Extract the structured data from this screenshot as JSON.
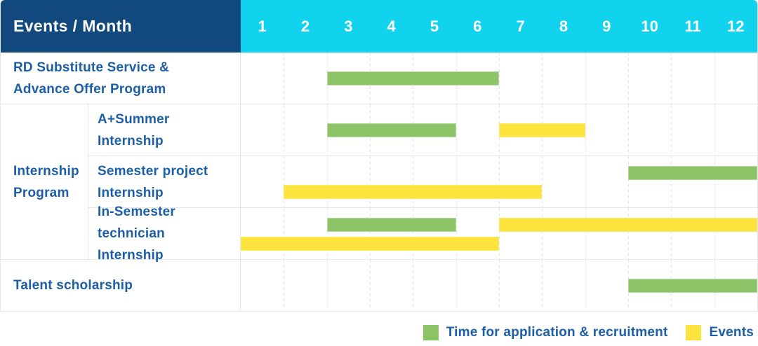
{
  "chart_data": {
    "type": "gantt",
    "corner_label": "Events / Month",
    "x_categories": [
      "1",
      "2",
      "3",
      "4",
      "5",
      "6",
      "7",
      "8",
      "9",
      "10",
      "11",
      "12"
    ],
    "x_range": [
      1,
      12
    ],
    "grid": true,
    "rows": [
      {
        "group": "",
        "label": "RD Substitute Service & Advance Offer Program",
        "label_lines": [
          "RD Substitute Service &",
          "Advance Offer Program"
        ],
        "bars": [
          {
            "series": "Time for application & recruitment",
            "type": "application",
            "start_month": 3,
            "end_month": 6,
            "line": "single"
          }
        ]
      },
      {
        "group": "Internship Program",
        "label": "A+Summer Internship",
        "label_lines": [
          "A+Summer",
          "Internship"
        ],
        "bars": [
          {
            "series": "Time for application & recruitment",
            "type": "application",
            "start_month": 3,
            "end_month": 5,
            "line": "single"
          },
          {
            "series": "Events",
            "type": "event",
            "start_month": 7,
            "end_month": 8,
            "line": "single"
          }
        ]
      },
      {
        "group": "Internship Program",
        "label": "Semester project Internship",
        "label_lines": [
          "Semester project",
          "Internship"
        ],
        "bars": [
          {
            "series": "Time for application & recruitment",
            "type": "application",
            "start_month": 10,
            "end_month": 12,
            "line": "top"
          },
          {
            "series": "Events",
            "type": "event",
            "start_month": 2,
            "end_month": 7,
            "line": "bottom"
          }
        ]
      },
      {
        "group": "Internship Program",
        "label": "In-Semester technician Internship",
        "label_lines": [
          "In-Semester",
          "technician Internship"
        ],
        "bars": [
          {
            "series": "Time for application & recruitment",
            "type": "application",
            "start_month": 3,
            "end_month": 5,
            "line": "top"
          },
          {
            "series": "Events",
            "type": "event",
            "start_month": 7,
            "end_month": 12,
            "line": "top"
          },
          {
            "series": "Events",
            "type": "event",
            "start_month": 1,
            "end_month": 6,
            "line": "bottom"
          }
        ]
      },
      {
        "group": "",
        "label": "Talent scholarship",
        "label_lines": [
          "Talent scholarship"
        ],
        "bars": [
          {
            "series": "Time for application & recruitment",
            "type": "application",
            "start_month": 10,
            "end_month": 12,
            "line": "single"
          }
        ]
      }
    ],
    "group_label": "Internship Program",
    "legend": [
      {
        "label": "Time for application & recruitment",
        "type": "application",
        "color": "#8CC367"
      },
      {
        "label": "Events",
        "type": "event",
        "color": "#FDE33D"
      }
    ],
    "colors": {
      "application": "#8CC367",
      "application_border": "#B5D99C",
      "event": "#FDE33D",
      "event_border": "#FBE966",
      "header_bg": "#11497E",
      "months_bg": "#12D3EE",
      "label_blue": "#1D5FA6",
      "grid_line": "#E5E5E5"
    },
    "legend_position": "bottom-right"
  }
}
